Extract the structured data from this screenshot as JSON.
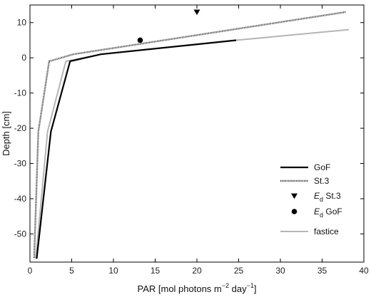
{
  "chart_data": {
    "type": "line",
    "title": "",
    "xlabel_parts": [
      "PAR [mol photons m",
      "−2",
      " day",
      "−1",
      "]"
    ],
    "ylabel": "Depth [cm]",
    "xlim": [
      0,
      40
    ],
    "ylim": [
      -58,
      15
    ],
    "xticks": [
      0,
      5,
      10,
      15,
      20,
      25,
      30,
      35,
      40
    ],
    "yticks": [
      10,
      0,
      -10,
      -20,
      -30,
      -40,
      -50
    ],
    "grid": false,
    "legend_position": "lower-right",
    "series": [
      {
        "name": "GoF",
        "style": "solid-black",
        "color": "#000000",
        "points": [
          [
            24.7,
            5
          ],
          [
            8.5,
            1
          ],
          [
            4.8,
            -1
          ],
          [
            2.5,
            -21
          ],
          [
            0.8,
            -57
          ]
        ]
      },
      {
        "name": "St.3",
        "style": "dotted-dark",
        "color": "#444444",
        "points": [
          [
            37.8,
            13
          ],
          [
            5.2,
            1
          ],
          [
            2.3,
            -1
          ],
          [
            1.0,
            -21
          ],
          [
            0.5,
            -57
          ]
        ]
      },
      {
        "name": "fastice",
        "style": "solid-gray",
        "color": "#b5b5b5",
        "points": [
          [
            38.2,
            8
          ],
          [
            24.7,
            5
          ],
          [
            8.5,
            1
          ],
          [
            4.3,
            -1
          ],
          [
            2.1,
            -21
          ],
          [
            0.7,
            -57
          ]
        ]
      }
    ],
    "markers": [
      {
        "name_main": "E",
        "name_sub": "d",
        "name_rest": " St.3",
        "shape": "triangle-down",
        "x": 20,
        "y": 13
      },
      {
        "name_main": "E",
        "name_sub": "d",
        "name_rest": " GoF",
        "shape": "circle",
        "x": 13.2,
        "y": 5
      }
    ]
  }
}
